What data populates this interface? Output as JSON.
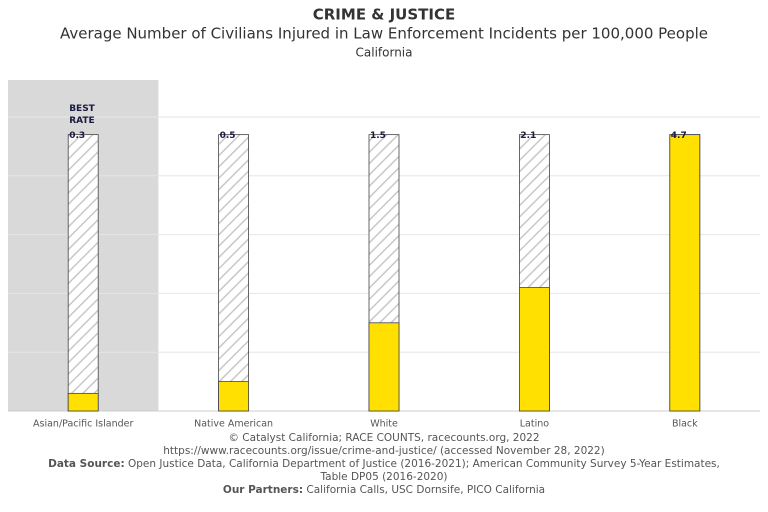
{
  "chart_data": {
    "type": "bar",
    "title": "CRIME & JUSTICE",
    "subtitle": "Average Number of Civilians Injured in Law Enforcement Incidents per 100,000 People",
    "location": "California",
    "categories": [
      "Asian/Pacific Islander",
      "Native American",
      "White",
      "Latino",
      "Black"
    ],
    "values": [
      0.3,
      0.5,
      1.5,
      2.1,
      4.7
    ],
    "color": "#ffe000",
    "highlight_color": "#d9d9d9",
    "best_label": "BEST RATE",
    "ylim": [
      0,
      5
    ],
    "yticks": [
      0,
      1,
      2,
      3,
      4,
      5
    ],
    "grid": true
  },
  "footer": {
    "credit": "© Catalyst California; RACE COUNTS, racecounts.org, 2022",
    "url": "https://www.racecounts.org/issue/crime-and-justice/ (accessed November 28, 2022)",
    "source_label": "Data Source:",
    "source": "Open Justice Data, California Department of Justice (2016-2021); American Community Survey 5-Year Estimates, Table DP05 (2016-2020)",
    "partners_label": "Our Partners:",
    "partners": "California Calls, USC Dornsife, PICO California"
  }
}
